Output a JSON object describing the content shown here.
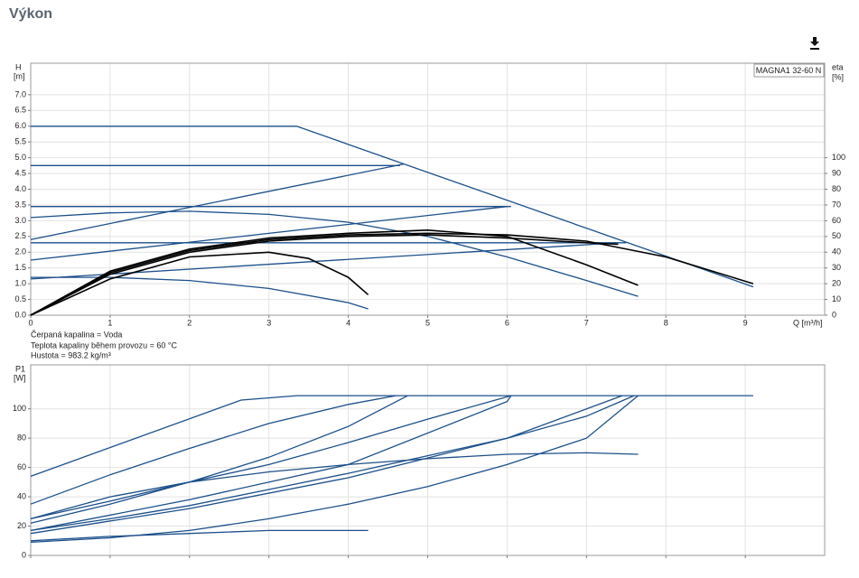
{
  "heading": "Výkon",
  "notes": [
    "Čerpaná kapalina = Voda",
    "Teplota kapaliny během provozu = 60 °C",
    "Hustota = 983.2 kg/m³"
  ],
  "chart_data": [
    {
      "type": "line",
      "y_label": "H",
      "y_unit": "[m]",
      "y2_label": "eta",
      "y2_unit": "[%]",
      "x_label": "Q [m³/h]",
      "legend_text": "MAGNA1 32-60 N",
      "grid": true,
      "xlim": [
        0,
        10
      ],
      "xticks": [
        0,
        1,
        2,
        3,
        4,
        5,
        6,
        7,
        8,
        9
      ],
      "ylim": [
        0,
        8
      ],
      "yticks": [
        {
          "value": 0,
          "label": "0.0"
        },
        {
          "value": 0.5,
          "label": "0.5"
        },
        {
          "value": 1,
          "label": "1.0"
        },
        {
          "value": 1.5,
          "label": "1.5"
        },
        {
          "value": 2,
          "label": "2.0"
        },
        {
          "value": 2.5,
          "label": "2.5"
        },
        {
          "value": 3,
          "label": "3.0"
        },
        {
          "value": 3.5,
          "label": "3.5"
        },
        {
          "value": 4,
          "label": "4.0"
        },
        {
          "value": 4.5,
          "label": "4.5"
        },
        {
          "value": 5,
          "label": "5.0"
        },
        {
          "value": 5.5,
          "label": "5.5"
        },
        {
          "value": 6,
          "label": "6.0"
        },
        {
          "value": 6.5,
          "label": "6.5"
        },
        {
          "value": 7,
          "label": "7.0"
        }
      ],
      "y2lim": [
        0,
        160
      ],
      "y2ticks": [
        0,
        10,
        20,
        30,
        40,
        50,
        60,
        70,
        80,
        90,
        100
      ],
      "series": [
        {
          "color": "#1b4f8a",
          "x": [
            0,
            3.35,
            9.1
          ],
          "values": [
            6.0,
            6.0,
            0.9
          ]
        },
        {
          "color": "#1b4f8a",
          "x": [
            0,
            4.65
          ],
          "values": [
            4.75,
            4.75
          ]
        },
        {
          "color": "#1b4f8a",
          "x": [
            0,
            6.05
          ],
          "values": [
            3.45,
            3.45
          ]
        },
        {
          "color": "#1b4f8a",
          "x": [
            0,
            7.5
          ],
          "values": [
            2.3,
            2.3
          ]
        },
        {
          "color": "#1b4f8a",
          "x": [
            0,
            4.7
          ],
          "values": [
            2.4,
            4.8
          ]
        },
        {
          "color": "#1b4f8a",
          "x": [
            0,
            6.0
          ],
          "values": [
            1.75,
            3.45
          ]
        },
        {
          "color": "#1b4f8a",
          "x": [
            0,
            7.4
          ],
          "values": [
            1.15,
            2.3
          ]
        },
        {
          "color": "#1b4f8a",
          "x": [
            0,
            1,
            2,
            3,
            4,
            5,
            6,
            7,
            7.65
          ],
          "values": [
            3.1,
            3.25,
            3.3,
            3.2,
            2.95,
            2.5,
            1.85,
            1.1,
            0.6
          ]
        },
        {
          "color": "#1b4f8a",
          "x": [
            0,
            1,
            2,
            3,
            4,
            4.25
          ],
          "values": [
            1.2,
            1.2,
            1.1,
            0.85,
            0.4,
            0.2
          ]
        },
        {
          "color": "#000000",
          "axis": "y2",
          "x": [
            0,
            1,
            2,
            3,
            4,
            5,
            6,
            7,
            7.65
          ],
          "values": [
            0,
            28,
            42,
            49,
            52,
            54,
            50,
            32,
            19
          ]
        },
        {
          "color": "#000000",
          "axis": "y2",
          "x": [
            0,
            1,
            2,
            3,
            3.5,
            4,
            4.25
          ],
          "values": [
            0,
            23,
            37,
            40,
            36,
            24,
            13
          ]
        },
        {
          "color": "#000000",
          "axis": "y2",
          "x": [
            0,
            1,
            2,
            3,
            4,
            5,
            6,
            7,
            8,
            9.1
          ],
          "values": [
            0,
            27,
            41,
            48,
            51,
            52,
            51,
            47,
            37,
            20
          ]
        },
        {
          "color": "#000000",
          "axis": "y2",
          "x": [
            0,
            1,
            2,
            3,
            4,
            5,
            6,
            7,
            7.4
          ],
          "values": [
            0,
            26,
            40,
            47,
            50,
            51,
            49,
            46,
            45
          ]
        }
      ]
    },
    {
      "type": "line",
      "y_label": "P1",
      "y_unit": "[W]",
      "grid": true,
      "xlim": [
        0,
        10
      ],
      "xticks": [
        0,
        1,
        2,
        3,
        4,
        5,
        6,
        7,
        8,
        9
      ],
      "ylim": [
        0,
        130
      ],
      "yticks": [
        0,
        20,
        40,
        60,
        80,
        100
      ],
      "series": [
        {
          "color": "#1b4f8a",
          "x": [
            0,
            2.65,
            3.35,
            9.1
          ],
          "values": [
            54,
            106,
            109,
            109
          ]
        },
        {
          "color": "#1b4f8a",
          "x": [
            0,
            1,
            2,
            3,
            4,
            4.6
          ],
          "values": [
            35,
            55,
            73,
            90,
            103,
            109
          ]
        },
        {
          "color": "#1b4f8a",
          "x": [
            0,
            1,
            2,
            3,
            4,
            4.75
          ],
          "values": [
            22,
            35,
            50,
            67,
            88,
            109
          ]
        },
        {
          "color": "#1b4f8a",
          "x": [
            0,
            1,
            2,
            3,
            4,
            5,
            6.05
          ],
          "values": [
            25,
            37,
            50,
            62,
            77,
            93,
            109
          ]
        },
        {
          "color": "#1b4f8a",
          "x": [
            0,
            2,
            4,
            6,
            6.05
          ],
          "values": [
            17,
            38,
            62,
            105,
            109
          ]
        },
        {
          "color": "#1b4f8a",
          "x": [
            0,
            1,
            2,
            3,
            4,
            5,
            6,
            7,
            7.6
          ],
          "values": [
            17,
            25,
            34,
            45,
            56,
            68,
            80,
            95,
            109
          ]
        },
        {
          "color": "#1b4f8a",
          "x": [
            0,
            2,
            4,
            6,
            7.45
          ],
          "values": [
            15,
            32,
            53,
            80,
            109
          ]
        },
        {
          "color": "#1b4f8a",
          "x": [
            0,
            1,
            2,
            3,
            4,
            5,
            6,
            7,
            7.65
          ],
          "values": [
            25,
            40,
            50,
            57,
            62,
            66,
            69,
            70,
            69
          ]
        },
        {
          "color": "#1b4f8a",
          "x": [
            0,
            1,
            2,
            3,
            4,
            5,
            6,
            7,
            7.65
          ],
          "values": [
            9,
            12,
            17,
            25,
            35,
            47,
            62,
            80,
            109
          ]
        },
        {
          "color": "#1b4f8a",
          "x": [
            0,
            1,
            2,
            3,
            4,
            4.25
          ],
          "values": [
            10,
            13,
            15,
            17,
            17,
            17
          ]
        }
      ]
    }
  ]
}
